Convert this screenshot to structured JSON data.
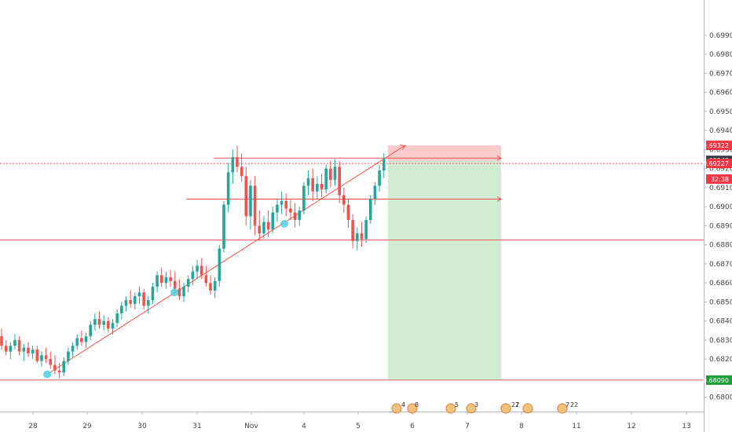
{
  "chart_data": {
    "type": "candlestick",
    "x_tick_labels": [
      "28",
      "29",
      "30",
      "31",
      "Nov",
      "4",
      "5",
      "6",
      "7",
      "8",
      "11",
      "12",
      "13"
    ],
    "y_tick_labels": [
      "0.69900",
      "0.69800",
      "0.69700",
      "0.69600",
      "0.69500",
      "0.69400",
      "0.69300",
      "0.69200",
      "0.69100",
      "0.69000",
      "0.68900",
      "0.68800",
      "0.68700",
      "0.68600",
      "0.68500",
      "0.68400",
      "0.68300",
      "0.68200",
      "0.68100",
      "0.68000"
    ],
    "ylim": [
      0.6797,
      0.6999
    ],
    "candles": [
      [
        0.6832,
        0.6836,
        0.6825,
        0.6827
      ],
      [
        0.6827,
        0.683,
        0.6822,
        0.6824
      ],
      [
        0.6824,
        0.6829,
        0.682,
        0.6827
      ],
      [
        0.6827,
        0.6833,
        0.6825,
        0.683
      ],
      [
        0.683,
        0.6832,
        0.6822,
        0.6824
      ],
      [
        0.6824,
        0.6828,
        0.6819,
        0.6826
      ],
      [
        0.6826,
        0.6829,
        0.6821,
        0.6823
      ],
      [
        0.6823,
        0.6827,
        0.682,
        0.6825
      ],
      [
        0.6825,
        0.6827,
        0.6818,
        0.6819
      ],
      [
        0.6819,
        0.6824,
        0.6816,
        0.6822
      ],
      [
        0.6822,
        0.6826,
        0.6818,
        0.682
      ],
      [
        0.682,
        0.6824,
        0.6815,
        0.6817
      ],
      [
        0.6817,
        0.6822,
        0.6812,
        0.6814
      ],
      [
        0.6814,
        0.6818,
        0.681,
        0.6813
      ],
      [
        0.6813,
        0.6821,
        0.6811,
        0.6819
      ],
      [
        0.6819,
        0.6826,
        0.6817,
        0.6824
      ],
      [
        0.6824,
        0.6829,
        0.6821,
        0.6827
      ],
      [
        0.6827,
        0.6833,
        0.6825,
        0.6831
      ],
      [
        0.6831,
        0.6835,
        0.6827,
        0.6829
      ],
      [
        0.6829,
        0.6834,
        0.6826,
        0.6832
      ],
      [
        0.6832,
        0.684,
        0.683,
        0.6838
      ],
      [
        0.6838,
        0.6844,
        0.6835,
        0.6841
      ],
      [
        0.6841,
        0.6845,
        0.6836,
        0.6838
      ],
      [
        0.6838,
        0.6843,
        0.6835,
        0.684
      ],
      [
        0.684,
        0.6842,
        0.6834,
        0.6836
      ],
      [
        0.6836,
        0.6841,
        0.6833,
        0.6839
      ],
      [
        0.6839,
        0.6846,
        0.6837,
        0.6844
      ],
      [
        0.6844,
        0.685,
        0.6841,
        0.6848
      ],
      [
        0.6848,
        0.6853,
        0.6845,
        0.6851
      ],
      [
        0.6851,
        0.6856,
        0.6847,
        0.6849
      ],
      [
        0.6849,
        0.6855,
        0.6846,
        0.6853
      ],
      [
        0.6853,
        0.6858,
        0.6849,
        0.6855
      ],
      [
        0.6855,
        0.6857,
        0.6846,
        0.6848
      ],
      [
        0.6848,
        0.6853,
        0.6844,
        0.6851
      ],
      [
        0.6851,
        0.686,
        0.6849,
        0.6858
      ],
      [
        0.6858,
        0.6866,
        0.6855,
        0.6864
      ],
      [
        0.6864,
        0.6868,
        0.6858,
        0.686
      ],
      [
        0.686,
        0.6866,
        0.6857,
        0.6863
      ],
      [
        0.6863,
        0.6867,
        0.6858,
        0.6861
      ],
      [
        0.6861,
        0.6866,
        0.6855,
        0.6857
      ],
      [
        0.6857,
        0.6862,
        0.6851,
        0.6853
      ],
      [
        0.6853,
        0.686,
        0.685,
        0.6858
      ],
      [
        0.6858,
        0.6864,
        0.6855,
        0.6862
      ],
      [
        0.6862,
        0.6869,
        0.6859,
        0.6866
      ],
      [
        0.6866,
        0.6872,
        0.6862,
        0.6869
      ],
      [
        0.6869,
        0.6873,
        0.6862,
        0.6864
      ],
      [
        0.6864,
        0.6869,
        0.6858,
        0.686
      ],
      [
        0.686,
        0.6864,
        0.6854,
        0.6856
      ],
      [
        0.6856,
        0.6863,
        0.6852,
        0.6861
      ],
      [
        0.6861,
        0.688,
        0.6858,
        0.6878
      ],
      [
        0.6878,
        0.6903,
        0.6876,
        0.6901
      ],
      [
        0.6901,
        0.6923,
        0.6897,
        0.6918
      ],
      [
        0.6918,
        0.693,
        0.6912,
        0.6926
      ],
      [
        0.6926,
        0.6932,
        0.6918,
        0.6921
      ],
      [
        0.6921,
        0.6928,
        0.6913,
        0.6916
      ],
      [
        0.6916,
        0.6921,
        0.689,
        0.6895
      ],
      [
        0.6895,
        0.6914,
        0.6888,
        0.6911
      ],
      [
        0.6911,
        0.6916,
        0.6885,
        0.689
      ],
      [
        0.689,
        0.6898,
        0.6882,
        0.6886
      ],
      [
        0.6886,
        0.6895,
        0.6883,
        0.6892
      ],
      [
        0.6892,
        0.6898,
        0.6884,
        0.6888
      ],
      [
        0.6888,
        0.69,
        0.6886,
        0.6897
      ],
      [
        0.6897,
        0.6904,
        0.6892,
        0.6901
      ],
      [
        0.6901,
        0.6908,
        0.6896,
        0.6903
      ],
      [
        0.6903,
        0.6907,
        0.6895,
        0.6899
      ],
      [
        0.6899,
        0.6904,
        0.6893,
        0.6897
      ],
      [
        0.6897,
        0.6902,
        0.6889,
        0.6893
      ],
      [
        0.6893,
        0.69,
        0.689,
        0.6898
      ],
      [
        0.6898,
        0.6913,
        0.6896,
        0.6911
      ],
      [
        0.6911,
        0.6919,
        0.6906,
        0.6915
      ],
      [
        0.6915,
        0.692,
        0.6903,
        0.6908
      ],
      [
        0.6908,
        0.6916,
        0.6904,
        0.6912
      ],
      [
        0.6912,
        0.6917,
        0.6905,
        0.6909
      ],
      [
        0.6909,
        0.6922,
        0.6907,
        0.692
      ],
      [
        0.692,
        0.6924,
        0.691,
        0.6914
      ],
      [
        0.6914,
        0.6925,
        0.6911,
        0.6921
      ],
      [
        0.6921,
        0.6924,
        0.6902,
        0.6906
      ],
      [
        0.6906,
        0.691,
        0.6897,
        0.6901
      ],
      [
        0.6901,
        0.6904,
        0.6889,
        0.6893
      ],
      [
        0.6893,
        0.6896,
        0.6878,
        0.6882
      ],
      [
        0.6882,
        0.6889,
        0.6877,
        0.6886
      ],
      [
        0.6886,
        0.6892,
        0.6879,
        0.6883
      ],
      [
        0.6883,
        0.6895,
        0.6881,
        0.6893
      ],
      [
        0.6893,
        0.6906,
        0.6891,
        0.6904
      ],
      [
        0.6904,
        0.6913,
        0.6901,
        0.6911
      ],
      [
        0.6911,
        0.6922,
        0.6908,
        0.6919
      ],
      [
        0.6919,
        0.6928,
        0.6915,
        0.6925
      ]
    ],
    "horizontal_levels": [
      {
        "price": 0.6809,
        "style": "solid"
      },
      {
        "price": 0.68825,
        "style": "solid"
      },
      {
        "price": 0.69227,
        "style": "dotted"
      }
    ],
    "trend_lines": [
      [
        0.6812,
        0.6932
      ],
      [
        0.69255,
        0.6925
      ],
      [
        0.6904,
        0.6904
      ]
    ],
    "pivot_markers": [
      0.6812,
      0.6855,
      0.6891
    ],
    "position_tool": {
      "entry": 0.6924,
      "stop": 0.69322,
      "target": 0.6809
    },
    "price_badges": [
      {
        "text": "0.69322",
        "price": 0.69322,
        "color": "#f23645"
      },
      {
        "text": "0.69243",
        "price": 0.69243,
        "color": "#363a45"
      },
      {
        "text": "0.69227",
        "price": 0.69227,
        "color": "#f23645"
      },
      {
        "text": "32:38",
        "price": 0.69145,
        "color": "#f23645"
      },
      {
        "text": "0.68090",
        "price": 0.6809,
        "color": "#1e9e3a"
      }
    ],
    "event_labels": [
      "4",
      "8",
      "5",
      "3",
      "27",
      "2",
      "7",
      "22"
    ],
    "colors": {
      "up": "#26a69a",
      "down": "#ef5350",
      "stop_zone": "#f8c6c6",
      "target_zone": "#cfeccf",
      "level": "#ef5350",
      "marker": "#4dd0e1"
    }
  }
}
